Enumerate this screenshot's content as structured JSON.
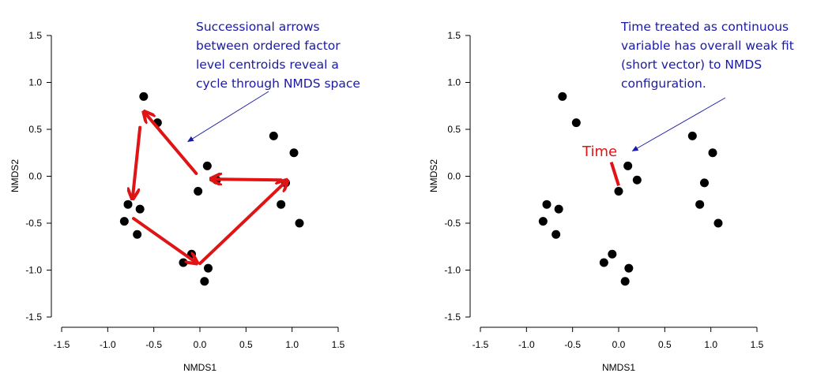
{
  "chart_data": [
    {
      "type": "scatter",
      "xlabel": "NMDS1",
      "ylabel": "NMDS2",
      "xlim": [
        -1.5,
        1.5
      ],
      "ylim": [
        -1.5,
        1.5
      ],
      "xticks": [
        "-1.5",
        "-1.0",
        "-0.5",
        "0.0",
        "0.5",
        "1.0",
        "1.5"
      ],
      "yticks": [
        "-1.5",
        "-1.0",
        "-0.5",
        "0.0",
        "0.5",
        "1.0",
        "1.5"
      ],
      "grid": false,
      "point_color": "#000000",
      "points": [
        [
          -0.61,
          0.85
        ],
        [
          -0.46,
          0.57
        ],
        [
          -0.78,
          -0.3
        ],
        [
          -0.65,
          -0.35
        ],
        [
          -0.82,
          -0.48
        ],
        [
          -0.68,
          -0.62
        ],
        [
          0.08,
          0.11
        ],
        [
          -0.02,
          -0.16
        ],
        [
          0.18,
          -0.04
        ],
        [
          -0.09,
          -0.83
        ],
        [
          -0.18,
          -0.92
        ],
        [
          0.09,
          -0.98
        ],
        [
          0.05,
          -1.12
        ],
        [
          0.8,
          0.43
        ],
        [
          1.02,
          0.25
        ],
        [
          0.93,
          -0.07
        ],
        [
          0.88,
          -0.3
        ],
        [
          1.08,
          -0.5
        ]
      ],
      "arrow_color": "#e01414",
      "arrows": [
        {
          "from": [
            0.88,
            -0.04
          ],
          "to": [
            0.13,
            -0.03
          ]
        },
        {
          "from": [
            -0.04,
            0.03
          ],
          "to": [
            -0.6,
            0.68
          ]
        },
        {
          "from": [
            -0.65,
            0.52
          ],
          "to": [
            -0.73,
            -0.23
          ]
        },
        {
          "from": [
            -0.72,
            -0.45
          ],
          "to": [
            -0.04,
            -0.92
          ]
        },
        {
          "from": [
            0.0,
            -0.93
          ],
          "to": [
            0.94,
            -0.05
          ]
        }
      ],
      "annotation": {
        "lines": [
          "Successional arrows",
          "between ordered factor",
          "level centroids reveal a",
          "cycle through NMDS space"
        ],
        "pointer_to": [
          -0.13,
          0.37
        ]
      }
    },
    {
      "type": "scatter",
      "xlabel": "NMDS1",
      "ylabel": "NMDS2",
      "xlim": [
        -1.5,
        1.5
      ],
      "ylim": [
        -1.5,
        1.5
      ],
      "xticks": [
        "-1.5",
        "-1.0",
        "-0.5",
        "0.0",
        "0.5",
        "1.0",
        "1.5"
      ],
      "yticks": [
        "-1.5",
        "-1.0",
        "-0.5",
        "0.0",
        "0.5",
        "1.0",
        "1.5"
      ],
      "grid": false,
      "point_color": "#000000",
      "points": [
        [
          -0.61,
          0.85
        ],
        [
          -0.46,
          0.57
        ],
        [
          -0.78,
          -0.3
        ],
        [
          -0.65,
          -0.35
        ],
        [
          -0.82,
          -0.48
        ],
        [
          -0.68,
          -0.62
        ],
        [
          0.1,
          0.11
        ],
        [
          0.0,
          -0.16
        ],
        [
          0.2,
          -0.04
        ],
        [
          -0.07,
          -0.83
        ],
        [
          -0.16,
          -0.92
        ],
        [
          0.11,
          -0.98
        ],
        [
          0.07,
          -1.12
        ],
        [
          0.8,
          0.43
        ],
        [
          1.02,
          0.25
        ],
        [
          0.93,
          -0.07
        ],
        [
          0.88,
          -0.3
        ],
        [
          1.08,
          -0.5
        ]
      ],
      "vector": {
        "label": "Time",
        "from": [
          0.0,
          -0.1
        ],
        "to": [
          -0.08,
          0.15
        ],
        "color": "#e01414"
      },
      "annotation": {
        "lines": [
          "Time treated as continuous",
          "variable has overall weak fit",
          "(short vector) to NMDS",
          "configuration."
        ],
        "pointer_to": [
          0.15,
          0.27
        ]
      }
    }
  ]
}
